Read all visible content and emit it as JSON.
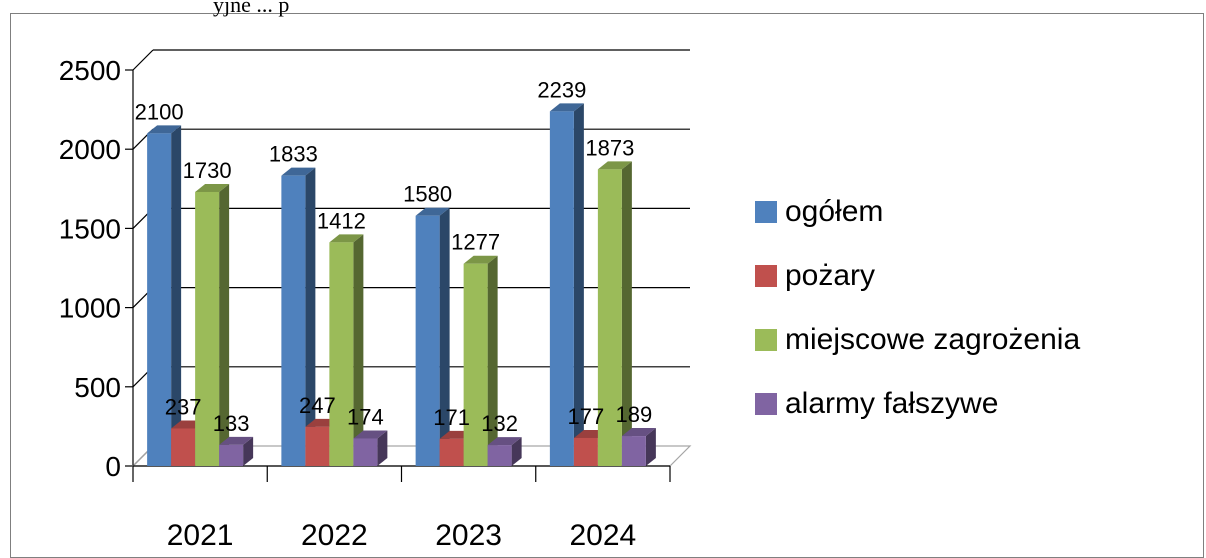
{
  "caption": "yjne ... p",
  "chart_data": {
    "type": "bar",
    "categories": [
      "2021",
      "2022",
      "2023",
      "2024"
    ],
    "series": [
      {
        "name": "ogółem",
        "values": [
          2100,
          1833,
          1580,
          2239
        ],
        "color": "#4f81bd"
      },
      {
        "name": "pożary",
        "values": [
          237,
          247,
          171,
          177
        ],
        "color": "#c0504d"
      },
      {
        "name": "miejscowe zagrożenia",
        "values": [
          1730,
          1412,
          1277,
          1873
        ],
        "color": "#9bbb59"
      },
      {
        "name": "alarmy fałszywe",
        "values": [
          133,
          174,
          132,
          189
        ],
        "color": "#8064a2"
      }
    ],
    "yticks": [
      "0",
      "500",
      "1000",
      "1500",
      "2000",
      "2500"
    ],
    "ylim": [
      0,
      2500
    ],
    "grid": true,
    "legend": "right",
    "style": "3d-clustered-column"
  }
}
